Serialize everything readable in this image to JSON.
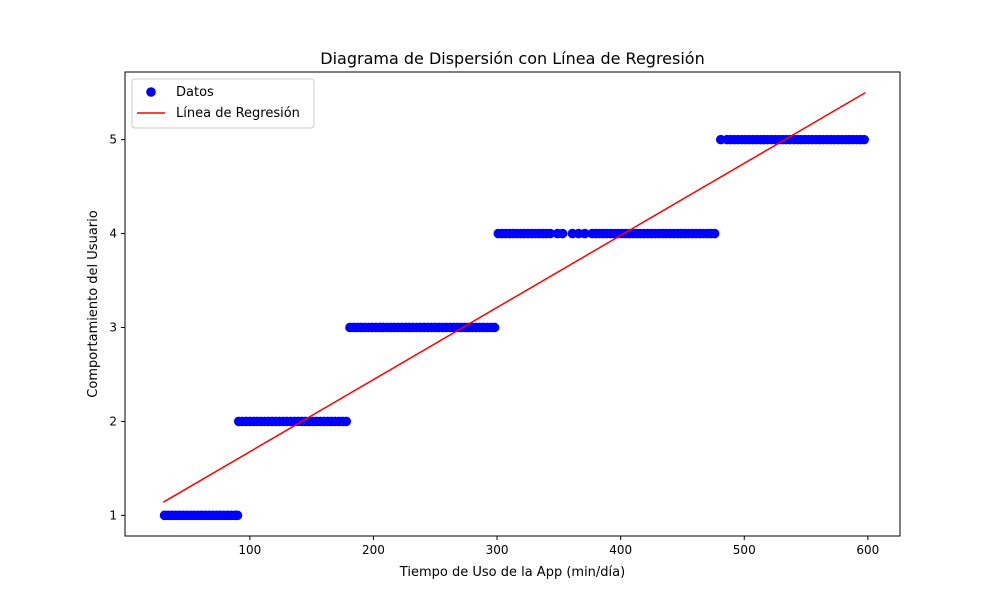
{
  "chart_data": {
    "type": "scatter",
    "title": "Diagrama de Dispersión con Línea de Regresión",
    "xlabel": "Tiempo de Uso de la App (min/día)",
    "ylabel": "Comportamiento del Usuario",
    "xlim": [
      -1,
      626
    ],
    "ylim": [
      0.78,
      5.72
    ],
    "xticks": [
      100,
      200,
      300,
      400,
      500,
      600
    ],
    "xtick_labels": [
      "100",
      "200",
      "300",
      "400",
      "500",
      "600"
    ],
    "yticks": [
      1,
      2,
      3,
      4,
      5
    ],
    "ytick_labels": [
      "1",
      "2",
      "3",
      "4",
      "5"
    ],
    "grid": false,
    "legend_position": "top-left",
    "colors": {
      "points": "#0000ff",
      "regression": "#ff0000"
    },
    "series": [
      {
        "name": "Datos",
        "kind": "scatter",
        "color": "#0000ff",
        "points": [
          [
            31,
            1
          ],
          [
            34,
            1
          ],
          [
            37,
            1
          ],
          [
            40,
            1
          ],
          [
            43,
            1
          ],
          [
            46,
            1
          ],
          [
            49,
            1
          ],
          [
            52,
            1
          ],
          [
            55,
            1
          ],
          [
            58,
            1
          ],
          [
            61,
            1
          ],
          [
            64,
            1
          ],
          [
            67,
            1
          ],
          [
            70,
            1
          ],
          [
            73,
            1
          ],
          [
            76,
            1
          ],
          [
            79,
            1
          ],
          [
            82,
            1
          ],
          [
            85,
            1
          ],
          [
            88,
            1
          ],
          [
            90,
            1
          ],
          [
            91,
            2
          ],
          [
            94,
            2
          ],
          [
            97,
            2
          ],
          [
            100,
            2
          ],
          [
            103,
            2
          ],
          [
            106,
            2
          ],
          [
            109,
            2
          ],
          [
            112,
            2
          ],
          [
            115,
            2
          ],
          [
            118,
            2
          ],
          [
            121,
            2
          ],
          [
            124,
            2
          ],
          [
            127,
            2
          ],
          [
            130,
            2
          ],
          [
            133,
            2
          ],
          [
            136,
            2
          ],
          [
            139,
            2
          ],
          [
            142,
            2
          ],
          [
            145,
            2
          ],
          [
            148,
            2
          ],
          [
            151,
            2
          ],
          [
            154,
            2
          ],
          [
            157,
            2
          ],
          [
            160,
            2
          ],
          [
            163,
            2
          ],
          [
            166,
            2
          ],
          [
            169,
            2
          ],
          [
            172,
            2
          ],
          [
            175,
            2
          ],
          [
            178,
            2
          ],
          [
            181,
            3
          ],
          [
            184,
            3
          ],
          [
            187,
            3
          ],
          [
            190,
            3
          ],
          [
            193,
            3
          ],
          [
            196,
            3
          ],
          [
            199,
            3
          ],
          [
            202,
            3
          ],
          [
            205,
            3
          ],
          [
            208,
            3
          ],
          [
            211,
            3
          ],
          [
            214,
            3
          ],
          [
            217,
            3
          ],
          [
            220,
            3
          ],
          [
            223,
            3
          ],
          [
            226,
            3
          ],
          [
            229,
            3
          ],
          [
            232,
            3
          ],
          [
            235,
            3
          ],
          [
            238,
            3
          ],
          [
            241,
            3
          ],
          [
            244,
            3
          ],
          [
            247,
            3
          ],
          [
            250,
            3
          ],
          [
            253,
            3
          ],
          [
            256,
            3
          ],
          [
            259,
            3
          ],
          [
            262,
            3
          ],
          [
            265,
            3
          ],
          [
            268,
            3
          ],
          [
            271,
            3
          ],
          [
            274,
            3
          ],
          [
            277,
            3
          ],
          [
            280,
            3
          ],
          [
            283,
            3
          ],
          [
            286,
            3
          ],
          [
            289,
            3
          ],
          [
            292,
            3
          ],
          [
            295,
            3
          ],
          [
            298,
            3
          ],
          [
            301,
            4
          ],
          [
            304,
            4
          ],
          [
            307,
            4
          ],
          [
            310,
            4
          ],
          [
            313,
            4
          ],
          [
            316,
            4
          ],
          [
            319,
            4
          ],
          [
            322,
            4
          ],
          [
            325,
            4
          ],
          [
            328,
            4
          ],
          [
            331,
            4
          ],
          [
            334,
            4
          ],
          [
            337,
            4
          ],
          [
            340,
            4
          ],
          [
            343,
            4
          ],
          [
            349,
            4
          ],
          [
            353,
            4
          ],
          [
            361,
            4
          ],
          [
            366,
            4
          ],
          [
            371,
            4
          ],
          [
            377,
            4
          ],
          [
            380,
            4
          ],
          [
            383,
            4
          ],
          [
            386,
            4
          ],
          [
            389,
            4
          ],
          [
            392,
            4
          ],
          [
            395,
            4
          ],
          [
            398,
            4
          ],
          [
            401,
            4
          ],
          [
            404,
            4
          ],
          [
            407,
            4
          ],
          [
            410,
            4
          ],
          [
            413,
            4
          ],
          [
            416,
            4
          ],
          [
            419,
            4
          ],
          [
            422,
            4
          ],
          [
            425,
            4
          ],
          [
            428,
            4
          ],
          [
            431,
            4
          ],
          [
            434,
            4
          ],
          [
            437,
            4
          ],
          [
            440,
            4
          ],
          [
            443,
            4
          ],
          [
            446,
            4
          ],
          [
            449,
            4
          ],
          [
            452,
            4
          ],
          [
            455,
            4
          ],
          [
            458,
            4
          ],
          [
            461,
            4
          ],
          [
            464,
            4
          ],
          [
            467,
            4
          ],
          [
            470,
            4
          ],
          [
            473,
            4
          ],
          [
            476,
            4
          ],
          [
            481,
            5
          ],
          [
            486,
            5
          ],
          [
            489,
            5
          ],
          [
            492,
            5
          ],
          [
            495,
            5
          ],
          [
            498,
            5
          ],
          [
            501,
            5
          ],
          [
            504,
            5
          ],
          [
            507,
            5
          ],
          [
            510,
            5
          ],
          [
            513,
            5
          ],
          [
            516,
            5
          ],
          [
            519,
            5
          ],
          [
            522,
            5
          ],
          [
            525,
            5
          ],
          [
            528,
            5
          ],
          [
            531,
            5
          ],
          [
            534,
            5
          ],
          [
            537,
            5
          ],
          [
            540,
            5
          ],
          [
            543,
            5
          ],
          [
            546,
            5
          ],
          [
            549,
            5
          ],
          [
            552,
            5
          ],
          [
            555,
            5
          ],
          [
            558,
            5
          ],
          [
            561,
            5
          ],
          [
            564,
            5
          ],
          [
            567,
            5
          ],
          [
            570,
            5
          ],
          [
            573,
            5
          ],
          [
            576,
            5
          ],
          [
            579,
            5
          ],
          [
            582,
            5
          ],
          [
            585,
            5
          ],
          [
            588,
            5
          ],
          [
            591,
            5
          ],
          [
            594,
            5
          ],
          [
            597,
            5
          ]
        ]
      },
      {
        "name": "Línea de Regresión",
        "kind": "line",
        "color": "#ff0000",
        "points": [
          [
            30,
            1.14
          ],
          [
            598,
            5.5
          ]
        ]
      }
    ]
  }
}
